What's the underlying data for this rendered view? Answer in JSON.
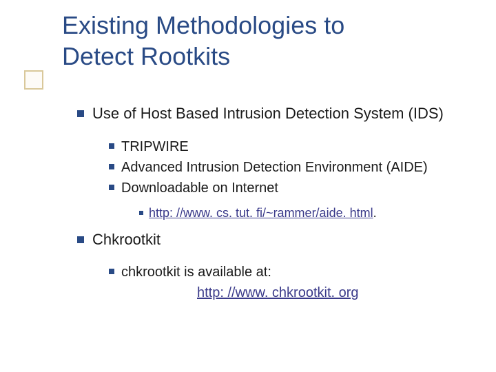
{
  "title_line1": "Existing Methodologies to",
  "title_line2": "Detect Rootkits",
  "colors": {
    "title": "#294a85",
    "bullet": "#294a85",
    "link": "#3a3a8a",
    "accent_border": "#d9c89a"
  },
  "items": {
    "l1a": "Use of Host Based Intrusion Detection System (IDS)",
    "l2a": "TRIPWIRE",
    "l2b": "Advanced Intrusion Detection Environment (AIDE)",
    "l2c": "Downloadable on Internet",
    "l3a": "http: //www. cs. tut. fi/~rammer/aide. html",
    "l3a_suffix": ".",
    "l1b": "Chkrootkit",
    "l2d_prefix": "chkrootkit is available at:",
    "l2d_link": "http: //www. chkrootkit. org"
  }
}
